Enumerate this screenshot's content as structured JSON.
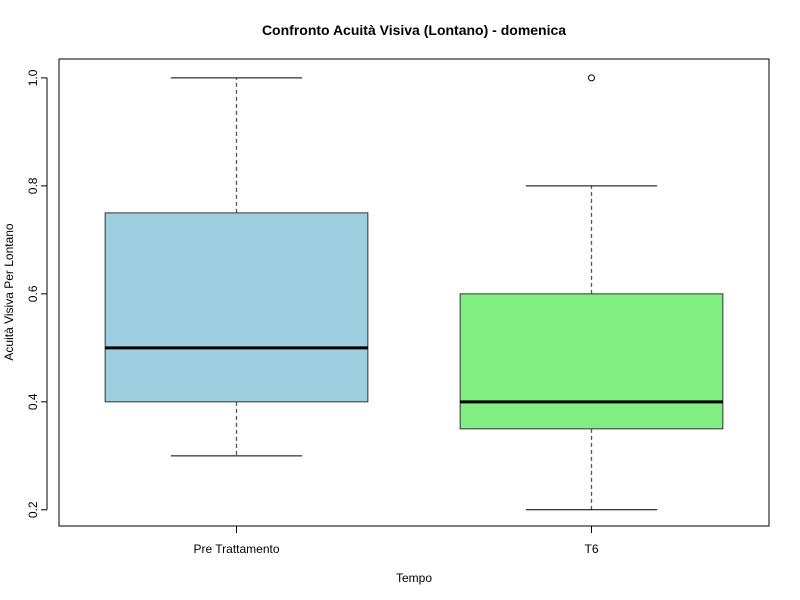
{
  "chart_data": {
    "type": "box",
    "title": "Confronto Acuità Visiva (Lontano) - domenica",
    "xlabel": "Tempo",
    "ylabel": "Acuità Visiva Per Lontano",
    "categories": [
      "Pre Trattamento",
      "T6"
    ],
    "ylim": [
      0.17,
      1.035
    ],
    "yticks": [
      0.2,
      0.4,
      0.6,
      0.8,
      1.0
    ],
    "ytick_labels": [
      "0.2",
      "0.4",
      "0.6",
      "0.8",
      "1.0"
    ],
    "grid": false,
    "boxes": [
      {
        "category": "Pre Trattamento",
        "min": 0.3,
        "q1": 0.4,
        "median": 0.5,
        "q3": 0.75,
        "max": 1.0,
        "outliers": [],
        "color": "#9ecfe0"
      },
      {
        "category": "T6",
        "min": 0.2,
        "q1": 0.35,
        "median": 0.4,
        "q3": 0.6,
        "max": 0.8,
        "outliers": [
          1.0
        ],
        "color": "#80ee80"
      }
    ]
  }
}
